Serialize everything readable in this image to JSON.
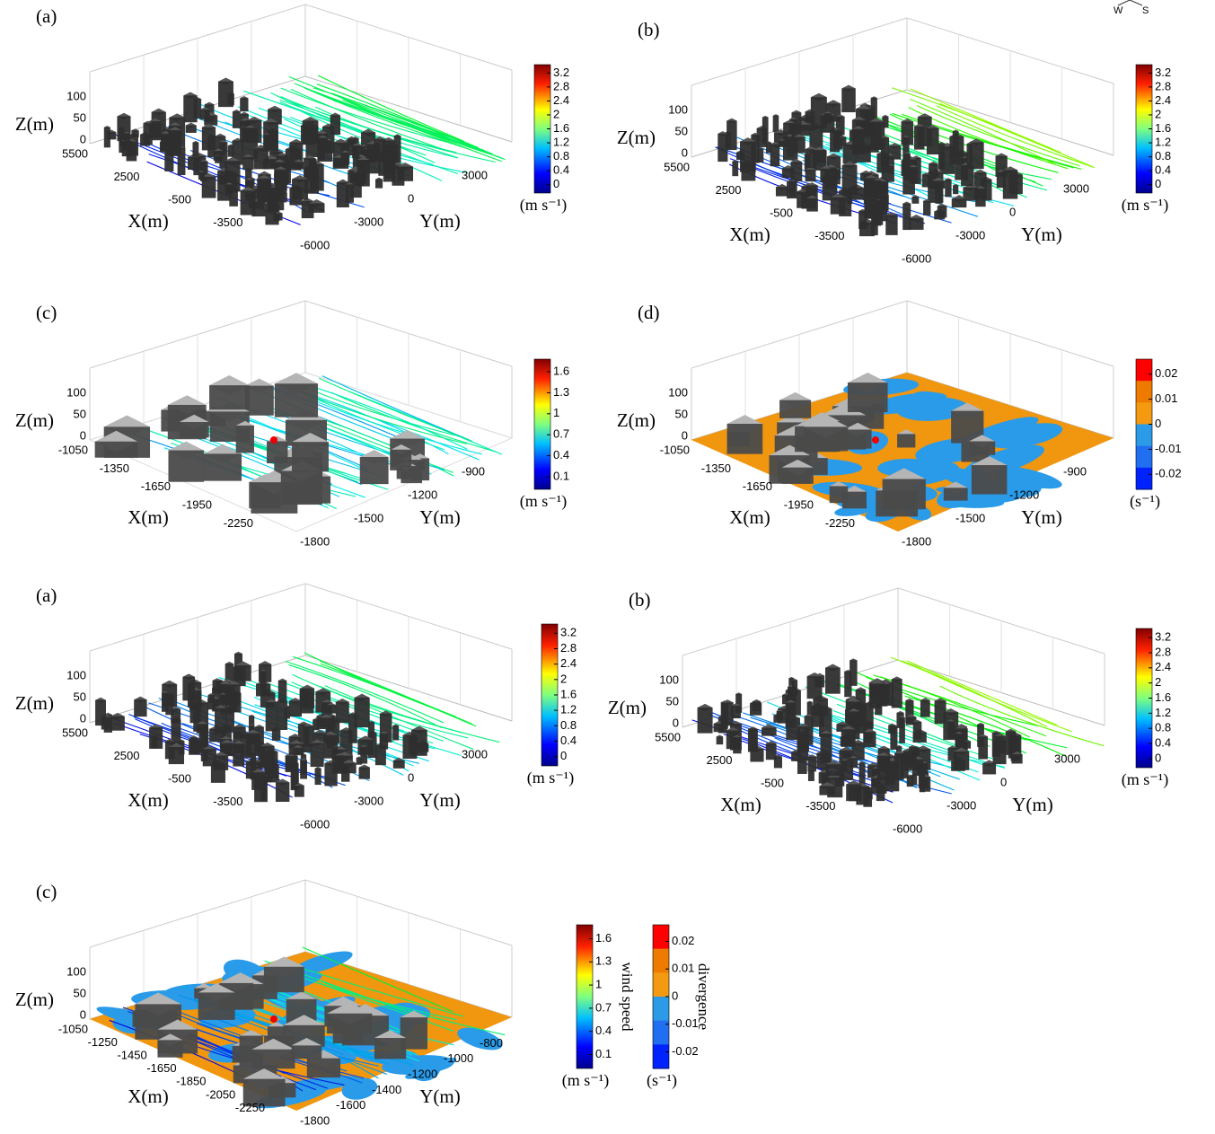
{
  "compass": {
    "west": "W",
    "south": "S"
  },
  "panels": [
    {
      "label": "(a)",
      "z_label": "Z(m)",
      "x_label": "X(m)",
      "y_label": "Y(m)",
      "z_ticks": [
        "100",
        "50",
        "0"
      ],
      "x_ticks": [
        "5500",
        "2500",
        "-500",
        "-3500"
      ],
      "y_ticks": [
        "-6000",
        "-3000",
        "0",
        "3000"
      ],
      "colorbars": [
        {
          "ticks": [
            "3.2",
            "2.8",
            "2.4",
            "2",
            "1.6",
            "1.2",
            "0.8",
            "0.4",
            "0"
          ],
          "unit": "(m s⁻¹)"
        }
      ]
    },
    {
      "label": "(b)",
      "z_label": "Z(m)",
      "x_label": "X(m)",
      "y_label": "Y(m)",
      "z_ticks": [
        "100",
        "50",
        "0"
      ],
      "x_ticks": [
        "5500",
        "2500",
        "-500",
        "-3500"
      ],
      "y_ticks": [
        "-6000",
        "-3000",
        "0",
        "3000"
      ],
      "colorbars": [
        {
          "ticks": [
            "3.2",
            "2.8",
            "2.4",
            "2",
            "1.6",
            "1.2",
            "0.8",
            "0.4",
            "0"
          ],
          "unit": "(m s⁻¹)"
        }
      ]
    },
    {
      "label": "(c)",
      "z_label": "Z(m)",
      "x_label": "X(m)",
      "y_label": "Y(m)",
      "z_ticks": [
        "100",
        "50",
        "0"
      ],
      "x_ticks": [
        "-1050",
        "-1350",
        "-1650",
        "-1950",
        "-2250"
      ],
      "y_ticks": [
        "-1800",
        "-1500",
        "-1200",
        "-900"
      ],
      "colorbars": [
        {
          "ticks": [
            "1.6",
            "1.3",
            "1",
            "0.7",
            "0.4",
            "0.1"
          ],
          "unit": "(m s⁻¹)"
        }
      ]
    },
    {
      "label": "(d)",
      "z_label": "Z(m)",
      "x_label": "X(m)",
      "y_label": "Y(m)",
      "z_ticks": [
        "100",
        "50",
        "0"
      ],
      "x_ticks": [
        "-1050",
        "-1350",
        "-1650",
        "-1950",
        "-2250"
      ],
      "y_ticks": [
        "-1800",
        "-1500",
        "-1200",
        "-900"
      ],
      "colorbars": [
        {
          "ticks": [
            "0.02",
            "0.01",
            "0",
            "-0.01",
            "-0.02"
          ],
          "unit": "(s⁻¹)"
        }
      ]
    },
    {
      "label": "(a)",
      "z_label": "Z(m)",
      "x_label": "X(m)",
      "y_label": "Y(m)",
      "z_ticks": [
        "100",
        "50",
        "0"
      ],
      "x_ticks": [
        "5500",
        "2500",
        "-500",
        "-3500"
      ],
      "y_ticks": [
        "-6000",
        "-3000",
        "0",
        "3000"
      ],
      "colorbars": [
        {
          "ticks": [
            "3.2",
            "2.8",
            "2.4",
            "2",
            "1.6",
            "1.2",
            "0.8",
            "0.4",
            "0"
          ],
          "unit": "(m s⁻¹)"
        }
      ]
    },
    {
      "label": "(b)",
      "z_label": "Z(m)",
      "x_label": "X(m)",
      "y_label": "Y(m)",
      "z_ticks": [
        "100",
        "50",
        "0"
      ],
      "x_ticks": [
        "5500",
        "2500",
        "-500",
        "-3500"
      ],
      "y_ticks": [
        "-6000",
        "-3000",
        "0",
        "3000"
      ],
      "colorbars": [
        {
          "ticks": [
            "3.2",
            "2.8",
            "2.4",
            "2",
            "1.6",
            "1.2",
            "0.8",
            "0.4",
            "0"
          ],
          "unit": "(m s⁻¹)"
        }
      ]
    },
    {
      "label": "(c)",
      "z_label": "Z(m)",
      "x_label": "X(m)",
      "y_label": "Y(m)",
      "z_ticks": [
        "100",
        "50",
        "0"
      ],
      "x_ticks": [
        "-1050",
        "-1250",
        "-1450",
        "-1650",
        "-1850",
        "-2050",
        "-2250"
      ],
      "y_ticks": [
        "-1800",
        "-1600",
        "-1400",
        "-1200",
        "-1000",
        "-800"
      ],
      "colorbars": [
        {
          "ticks": [
            "1.6",
            "1.3",
            "1",
            "0.7",
            "0.4",
            "0.1"
          ],
          "unit": "(m s⁻¹)",
          "title": "wind speed"
        },
        {
          "ticks": [
            "0.02",
            "0.01",
            "0",
            "-0.01",
            "-0.02"
          ],
          "unit": "(s⁻¹)",
          "title": "divergence"
        }
      ]
    }
  ]
}
